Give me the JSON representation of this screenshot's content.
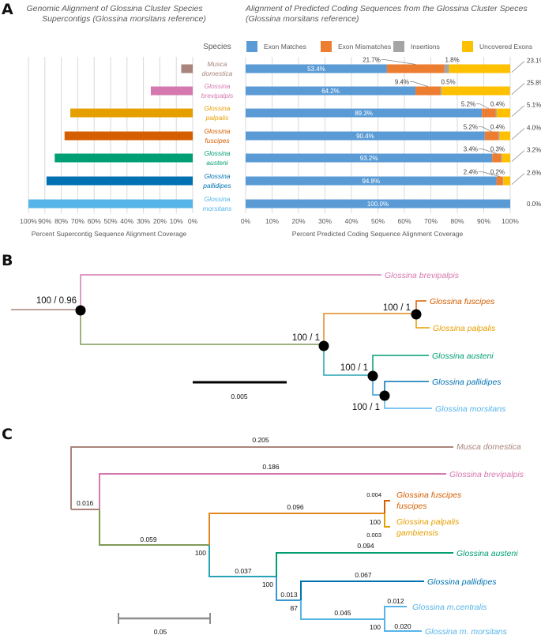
{
  "panels": {
    "a": "A",
    "b": "B",
    "c": "C"
  },
  "species_header": "Species",
  "colors": {
    "exon_matches": "#5b9bd5",
    "exon_mismatches": "#ed7d31",
    "insertions": "#a5a5a5",
    "uncovered_exons": "#ffc000",
    "grid": "#d9d9d9",
    "musca": "#a8847c",
    "brevipalpis": "#d678b0",
    "palpalis": "#e69f00",
    "fuscipes": "#d55e00",
    "austeni": "#009e73",
    "pallidipes": "#0072b2",
    "morsitans": "#56b4e9",
    "olive": "#7f9a55",
    "teal": "#26a4b5",
    "scalebar_c": "#8c8c8c"
  },
  "chart_data": [
    {
      "type": "bar",
      "orientation": "horizontal-reversed",
      "title_lines": [
        "Genomic Alignment of Glossina Cluster Species",
        "Supercontigs (Glossina morsitans reference)"
      ],
      "xlabel": "Percent Supercontig Sequence Alignment Coverage",
      "ylabel": "Species",
      "xlim": [
        0,
        100
      ],
      "x_ticks": [
        "100%",
        "90%",
        "80%",
        "70%",
        "60%",
        "50%",
        "40%",
        "30%",
        "20%",
        "10%",
        "0%"
      ],
      "grid": true,
      "categories": [
        {
          "name_line1": "Musca",
          "name_line2": "domestica",
          "color_key": "musca"
        },
        {
          "name_line1": "Glossina",
          "name_line2": "brevipalpis",
          "color_key": "brevipalpis"
        },
        {
          "name_line1": "Glossina",
          "name_line2": "palpalis",
          "color_key": "palpalis"
        },
        {
          "name_line1": "Glossina",
          "name_line2": "fuscipes",
          "color_key": "fuscipes"
        },
        {
          "name_line1": "Glossina",
          "name_line2": "austeni",
          "color_key": "austeni"
        },
        {
          "name_line1": "Glossina",
          "name_line2": "pallidipes",
          "color_key": "pallidipes"
        },
        {
          "name_line1": "Glossina",
          "name_line2": "morsitans",
          "color_key": "morsitans"
        }
      ],
      "values": [
        7,
        25.5,
        74.5,
        78,
        84,
        89,
        100
      ]
    },
    {
      "type": "bar",
      "orientation": "horizontal-stacked",
      "title_lines": [
        "Alignment of Predicted Coding Sequences from the Glossina Cluster Speces",
        "(Glossina morsitans reference)"
      ],
      "xlabel": "Percent Predicted Coding Sequence Alignment Coverage",
      "xlim": [
        0,
        100
      ],
      "x_ticks": [
        "0%",
        "10%",
        "20%",
        "30%",
        "40%",
        "50%",
        "60%",
        "70%",
        "80%",
        "90%",
        "100%"
      ],
      "grid": true,
      "legend": "top",
      "categories": [
        "Musca domestica",
        "Glossina brevipalpis",
        "Glossina palpalis",
        "Glossina fuscipes",
        "Glossina austeni",
        "Glossina pallidipes",
        "Glossina morsitans"
      ],
      "series": [
        {
          "name": "Exon Matches",
          "color_key": "exon_matches",
          "values": [
            53.4,
            64.2,
            89.3,
            90.4,
            93.2,
            94.8,
            100.0
          ],
          "labels": [
            "53.4%",
            "64.2%",
            "89.3%",
            "90.4%",
            "93.2%",
            "94.8%",
            "100.0%"
          ]
        },
        {
          "name": "Exon Mismatches",
          "color_key": "exon_mismatches",
          "values": [
            21.7,
            9.4,
            5.2,
            5.2,
            3.4,
            2.4,
            0
          ],
          "labels": [
            "21.7%",
            "9.4%",
            "5.2%",
            "5.2%",
            "3.4%",
            "2.4%",
            ""
          ]
        },
        {
          "name": "Insertions",
          "color_key": "insertions",
          "values": [
            1.8,
            0.5,
            0.4,
            0.4,
            0.3,
            0.2,
            0
          ],
          "labels": [
            "1.8%",
            "0.5%",
            "0.4%",
            "0.4%",
            "0.3%",
            "0.2%",
            ""
          ]
        },
        {
          "name": "Uncovered Exons",
          "color_key": "uncovered_exons",
          "values": [
            23.1,
            25.8,
            5.1,
            4.0,
            3.2,
            2.6,
            0.0
          ],
          "labels": [
            "23.1%",
            "25.8%",
            "5.1%",
            "4.0%",
            "3.2%",
            "2.6%",
            "0.0%"
          ]
        }
      ]
    }
  ],
  "tree_b": {
    "scale_label": "0.005",
    "supports": [
      "100 / 0.96",
      "100 / 1",
      "100 / 1",
      "100 / 1",
      "100 / 1"
    ],
    "leaves": [
      {
        "label": "Glossina brevipalpis",
        "color_key": "brevipalpis"
      },
      {
        "label": "Glossina fuscipes",
        "color_key": "fuscipes"
      },
      {
        "label": "Glossina palpalis",
        "color_key": "palpalis"
      },
      {
        "label": "Glossina austeni",
        "color_key": "austeni"
      },
      {
        "label": "Glossina pallidipes",
        "color_key": "pallidipes"
      },
      {
        "label": "Glossina morsitans",
        "color_key": "morsitans"
      }
    ]
  },
  "tree_c": {
    "scale_label": "0.05",
    "leaves": [
      {
        "label": "Musca domestica",
        "color_key": "musca"
      },
      {
        "label": "Glossina brevipalpis",
        "color_key": "brevipalpis"
      },
      {
        "label_line1": "Glossina fuscipes",
        "label_line2": "fuscipes",
        "color_key": "fuscipes"
      },
      {
        "label_line1": "Glossina palpalis",
        "label_line2": "gambiensis",
        "color_key": "palpalis"
      },
      {
        "label": "Glossina austeni",
        "color_key": "austeni"
      },
      {
        "label": "Glossina pallidipes",
        "color_key": "pallidipes"
      },
      {
        "label": "Glossina m.centralis",
        "color_key": "morsitans"
      },
      {
        "label": "Glossina m. morsitans",
        "color_key": "morsitans"
      }
    ],
    "branch_lengths": {
      "musca": "0.205",
      "brevipalpis": "0.186",
      "root_inner": "0.016",
      "to_palpalis_clade": "0.059",
      "palpalis_clade": "0.096",
      "fuscipes": "0.004",
      "palpalis": "0.003",
      "to_austeni_clade": "0.037",
      "austeni": "0.094",
      "to_pallidipes_clade": "0.013",
      "pallidipes": "0.067",
      "to_morsitans_clade": "0.045",
      "centralis": "0.012",
      "m_morsitans": "0.020"
    },
    "bootstraps": {
      "palpalis_node": "100",
      "main_node": "100",
      "austeni_node": "100",
      "pallidipes_node": "87",
      "morsitans_node": "100"
    }
  }
}
